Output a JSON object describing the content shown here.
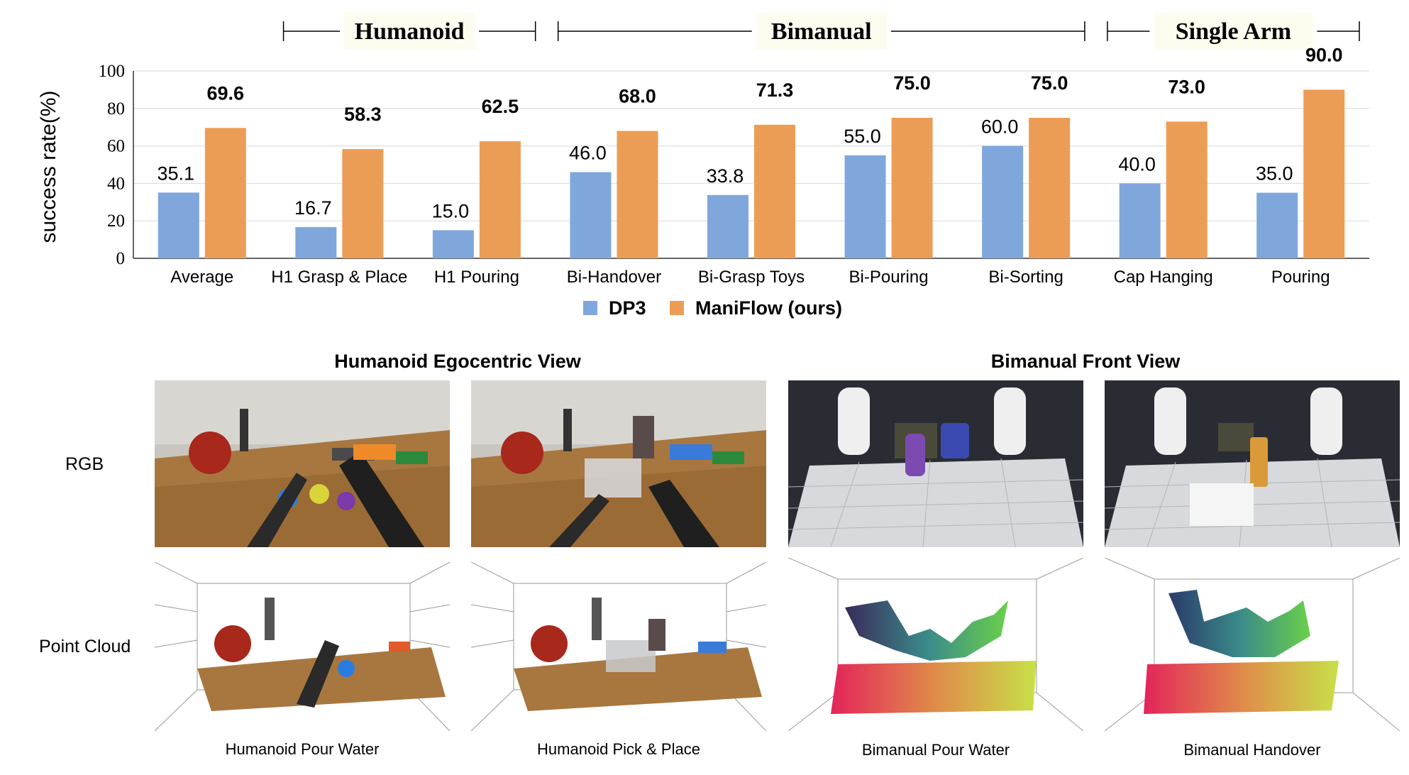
{
  "chart_data": {
    "type": "bar",
    "ylabel": "success rate(%)",
    "ylim": [
      0,
      100
    ],
    "yticks": [
      0,
      20,
      40,
      60,
      80,
      100
    ],
    "grid": true,
    "legend_position": "bottom-center",
    "groups": [
      {
        "label": "Humanoid",
        "categories": [
          "H1 Grasp & Place",
          "H1 Pouring"
        ]
      },
      {
        "label": "Bimanual",
        "categories": [
          "Bi-Handover",
          "Bi-Grasp Toys",
          "Bi-Pouring",
          "Bi-Sorting"
        ]
      },
      {
        "label": "Single Arm",
        "categories": [
          "Cap Hanging",
          "Pouring"
        ]
      }
    ],
    "categories": [
      "Average",
      "H1 Grasp & Place",
      "H1 Pouring",
      "Bi-Handover",
      "Bi-Grasp Toys",
      "Bi-Pouring",
      "Bi-Sorting",
      "Cap Hanging",
      "Pouring"
    ],
    "series": [
      {
        "name": "DP3",
        "color": "#7fa7dc",
        "values": [
          35.1,
          16.7,
          15.0,
          46.0,
          33.8,
          55.0,
          60.0,
          40.0,
          35.0
        ],
        "labels": [
          "35.1",
          "16.7",
          "15.0",
          "46.0",
          "33.8",
          "55.0",
          "60.0",
          "40.0",
          "35.0"
        ]
      },
      {
        "name": "ManiFlow (ours)",
        "color": "#ec9d55",
        "values": [
          69.6,
          58.3,
          62.5,
          68.0,
          71.3,
          75.0,
          75.0,
          73.0,
          90.0
        ],
        "labels": [
          "69.6",
          "58.3",
          "62.5",
          "68.0",
          "71.3",
          "75.0",
          "75.0",
          "73.0",
          "90.0"
        ]
      }
    ]
  },
  "panels": {
    "left_title": "Humanoid Egocentric View",
    "right_title": "Bimanual Front View",
    "row_rgb": "RGB",
    "row_pc": "Point Cloud",
    "captions": [
      "Humanoid Pour Water",
      "Humanoid Pick & Place",
      "Bimanual Pour Water",
      "Bimanual Handover"
    ]
  }
}
